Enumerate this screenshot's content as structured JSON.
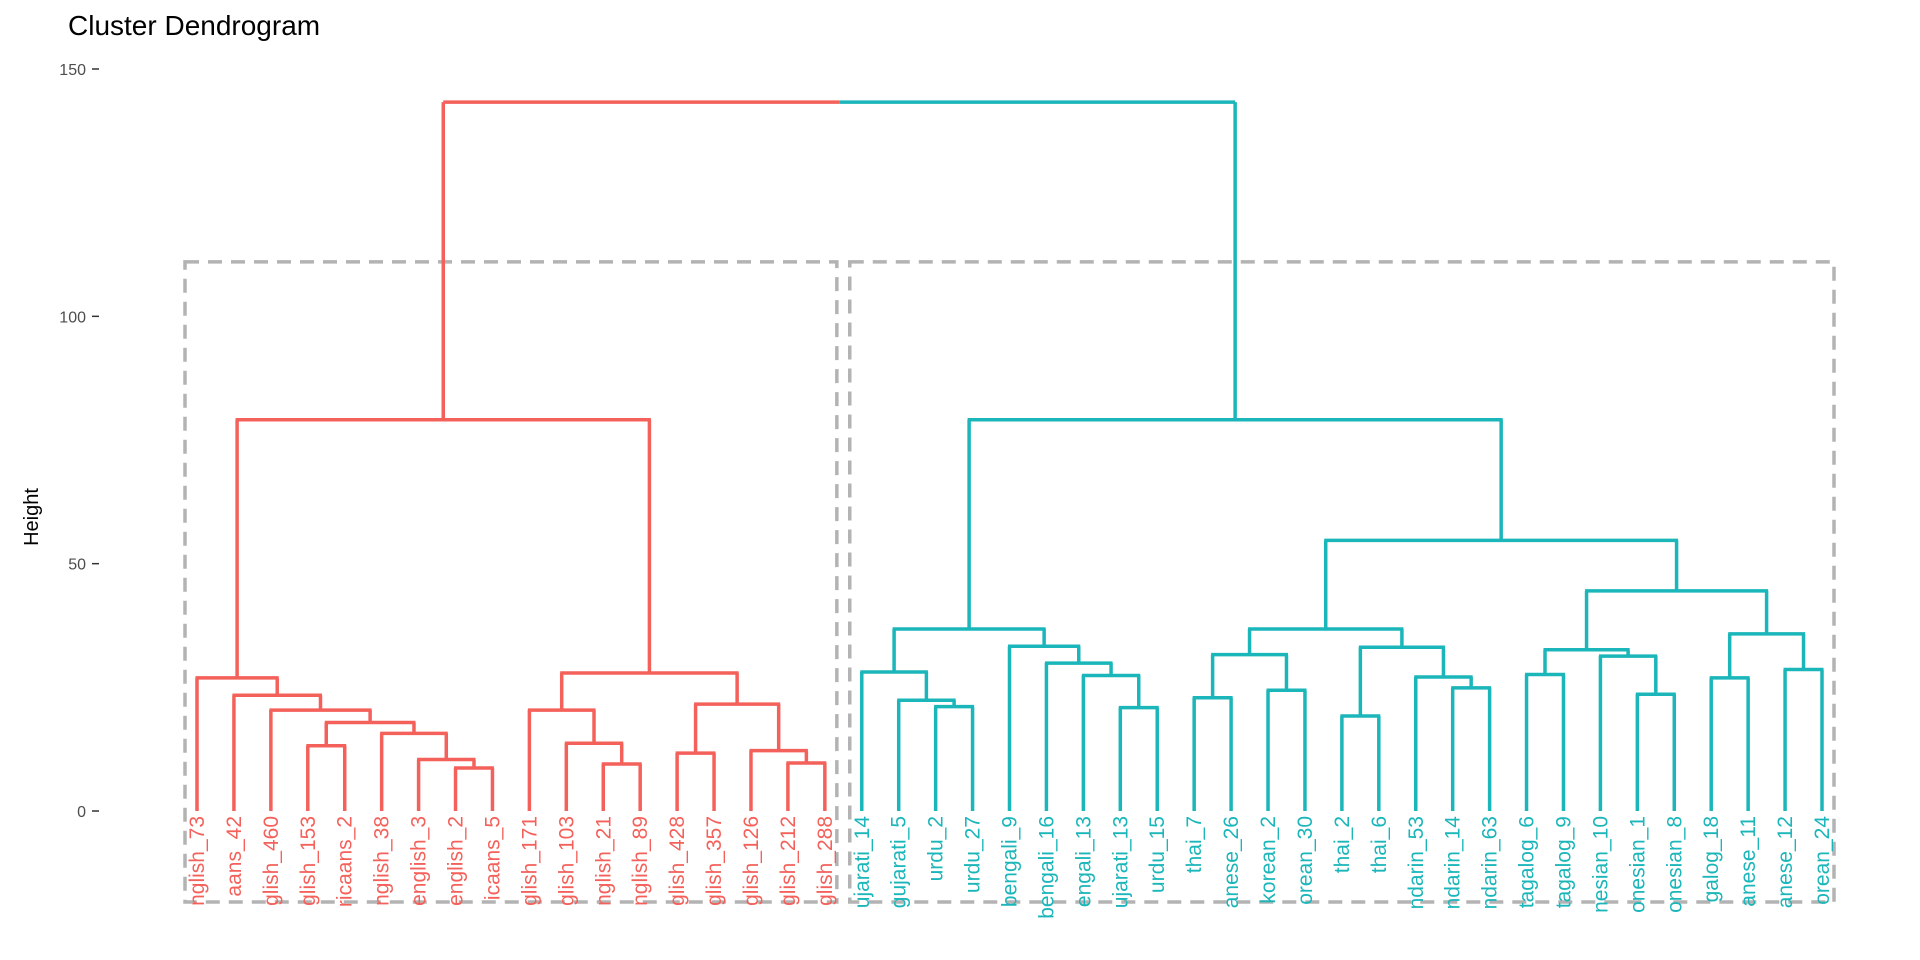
{
  "chart_data": {
    "type": "dendrogram",
    "title": "Cluster Dendrogram",
    "xlabel": "",
    "ylabel": "Height",
    "ylim": [
      0,
      150
    ],
    "yticks": [
      0,
      50,
      100,
      150
    ],
    "grid": false,
    "clusters": [
      {
        "color": "#F4615B"
      },
      {
        "color": "#1BB6BA"
      }
    ],
    "rect_color": "#B3B3B3",
    "rect_height": 111,
    "leaves": [
      {
        "label": "nglish_73",
        "cluster": 0
      },
      {
        "label": "aans_42",
        "cluster": 0
      },
      {
        "label": "glish_460",
        "cluster": 0
      },
      {
        "label": "glish_153",
        "cluster": 0
      },
      {
        "label": "ricaans_2",
        "cluster": 0
      },
      {
        "label": "nglish_38",
        "cluster": 0
      },
      {
        "label": "english_3",
        "cluster": 0
      },
      {
        "label": "english_2",
        "cluster": 0
      },
      {
        "label": "icaans_5",
        "cluster": 0
      },
      {
        "label": "glish_171",
        "cluster": 0
      },
      {
        "label": "glish_103",
        "cluster": 0
      },
      {
        "label": "nglish_21",
        "cluster": 0
      },
      {
        "label": "nglish_89",
        "cluster": 0
      },
      {
        "label": "glish_428",
        "cluster": 0
      },
      {
        "label": "glish_357",
        "cluster": 0
      },
      {
        "label": "glish_126",
        "cluster": 0
      },
      {
        "label": "glish_212",
        "cluster": 0
      },
      {
        "label": "glish_288",
        "cluster": 0
      },
      {
        "label": "ujarati_14",
        "cluster": 1
      },
      {
        "label": "gujarati_5",
        "cluster": 1
      },
      {
        "label": "urdu_2",
        "cluster": 1
      },
      {
        "label": "urdu_27",
        "cluster": 1
      },
      {
        "label": "bengali_9",
        "cluster": 1
      },
      {
        "label": "bengali_16",
        "cluster": 1
      },
      {
        "label": "engali_13",
        "cluster": 1
      },
      {
        "label": "ujarati_13",
        "cluster": 1
      },
      {
        "label": "urdu_15",
        "cluster": 1
      },
      {
        "label": "thai_7",
        "cluster": 1
      },
      {
        "label": "anese_26",
        "cluster": 1
      },
      {
        "label": "korean_2",
        "cluster": 1
      },
      {
        "label": "orean_30",
        "cluster": 1
      },
      {
        "label": "thai_2",
        "cluster": 1
      },
      {
        "label": "thai_6",
        "cluster": 1
      },
      {
        "label": "ndarin_53",
        "cluster": 1
      },
      {
        "label": "ndarin_14",
        "cluster": 1
      },
      {
        "label": "ndarin_63",
        "cluster": 1
      },
      {
        "label": "tagalog_6",
        "cluster": 1
      },
      {
        "label": "tagalog_9",
        "cluster": 1
      },
      {
        "label": "nesian_10",
        "cluster": 1
      },
      {
        "label": "onesian_1",
        "cluster": 1
      },
      {
        "label": "onesian_8",
        "cluster": 1
      },
      {
        "label": "galog_18",
        "cluster": 1
      },
      {
        "label": "anese_11",
        "cluster": 1
      },
      {
        "label": "anese_12",
        "cluster": 1
      },
      {
        "label": "orean_24",
        "cluster": 1
      }
    ],
    "tree": {
      "h": 143.3,
      "c": [
        {
          "h": 79.1,
          "c": [
            {
              "h": 26.9,
              "c": [
                0,
                {
                  "h": 23.4,
                  "c": [
                    1,
                    {
                      "h": 20.4,
                      "c": [
                        2,
                        {
                          "h": 17.9,
                          "c": [
                            {
                              "h": 13.2,
                              "c": [
                                3,
                                4
                              ]
                            },
                            {
                              "h": 15.7,
                              "c": [
                                5,
                                {
                                  "h": 10.4,
                                  "c": [
                                    6,
                                    {
                                      "h": 8.7,
                                      "c": [
                                        7,
                                        8
                                      ]
                                    }
                                  ]
                                }
                              ]
                            }
                          ]
                        }
                      ]
                    }
                  ]
                }
              ]
            },
            {
              "h": 27.9,
              "c": [
                {
                  "h": 20.4,
                  "c": [
                    9,
                    {
                      "h": 13.7,
                      "c": [
                        10,
                        {
                          "h": 9.5,
                          "c": [
                            11,
                            12
                          ]
                        }
                      ]
                    }
                  ]
                },
                {
                  "h": 21.6,
                  "c": [
                    {
                      "h": 11.7,
                      "c": [
                        13,
                        14
                      ]
                    },
                    {
                      "h": 12.2,
                      "c": [
                        15,
                        {
                          "h": 9.7,
                          "c": [
                            16,
                            17
                          ]
                        }
                      ]
                    }
                  ]
                }
              ]
            }
          ]
        },
        {
          "h": 79.1,
          "c": [
            {
              "h": 36.8,
              "c": [
                {
                  "h": 28.1,
                  "c": [
                    18,
                    {
                      "h": 22.4,
                      "c": [
                        19,
                        {
                          "h": 21.1,
                          "c": [
                            20,
                            21
                          ]
                        }
                      ]
                    }
                  ]
                },
                {
                  "h": 33.3,
                  "c": [
                    22,
                    {
                      "h": 29.9,
                      "c": [
                        23,
                        {
                          "h": 27.4,
                          "c": [
                            24,
                            {
                              "h": 20.9,
                              "c": [
                                25,
                                26
                              ]
                            }
                          ]
                        }
                      ]
                    }
                  ]
                }
              ]
            },
            {
              "h": 54.7,
              "c": [
                {
                  "h": 36.8,
                  "c": [
                    {
                      "h": 31.6,
                      "c": [
                        {
                          "h": 22.9,
                          "c": [
                            27,
                            28
                          ]
                        },
                        {
                          "h": 24.4,
                          "c": [
                            29,
                            30
                          ]
                        }
                      ]
                    },
                    {
                      "h": 33.1,
                      "c": [
                        {
                          "h": 19.2,
                          "c": [
                            31,
                            32
                          ]
                        },
                        {
                          "h": 27.1,
                          "c": [
                            33,
                            {
                              "h": 24.9,
                              "c": [
                                34,
                                35
                              ]
                            }
                          ]
                        }
                      ]
                    }
                  ]
                },
                {
                  "h": 44.5,
                  "c": [
                    {
                      "h": 32.6,
                      "c": [
                        {
                          "h": 27.6,
                          "c": [
                            36,
                            37
                          ]
                        },
                        {
                          "h": 31.3,
                          "c": [
                            38,
                            {
                              "h": 23.6,
                              "c": [
                                39,
                                40
                              ]
                            }
                          ]
                        }
                      ]
                    },
                    {
                      "h": 35.8,
                      "c": [
                        {
                          "h": 26.9,
                          "c": [
                            41,
                            42
                          ]
                        },
                        {
                          "h": 28.6,
                          "c": [
                            43,
                            44
                          ]
                        }
                      ]
                    }
                  ]
                }
              ]
            }
          ]
        }
      ]
    }
  }
}
